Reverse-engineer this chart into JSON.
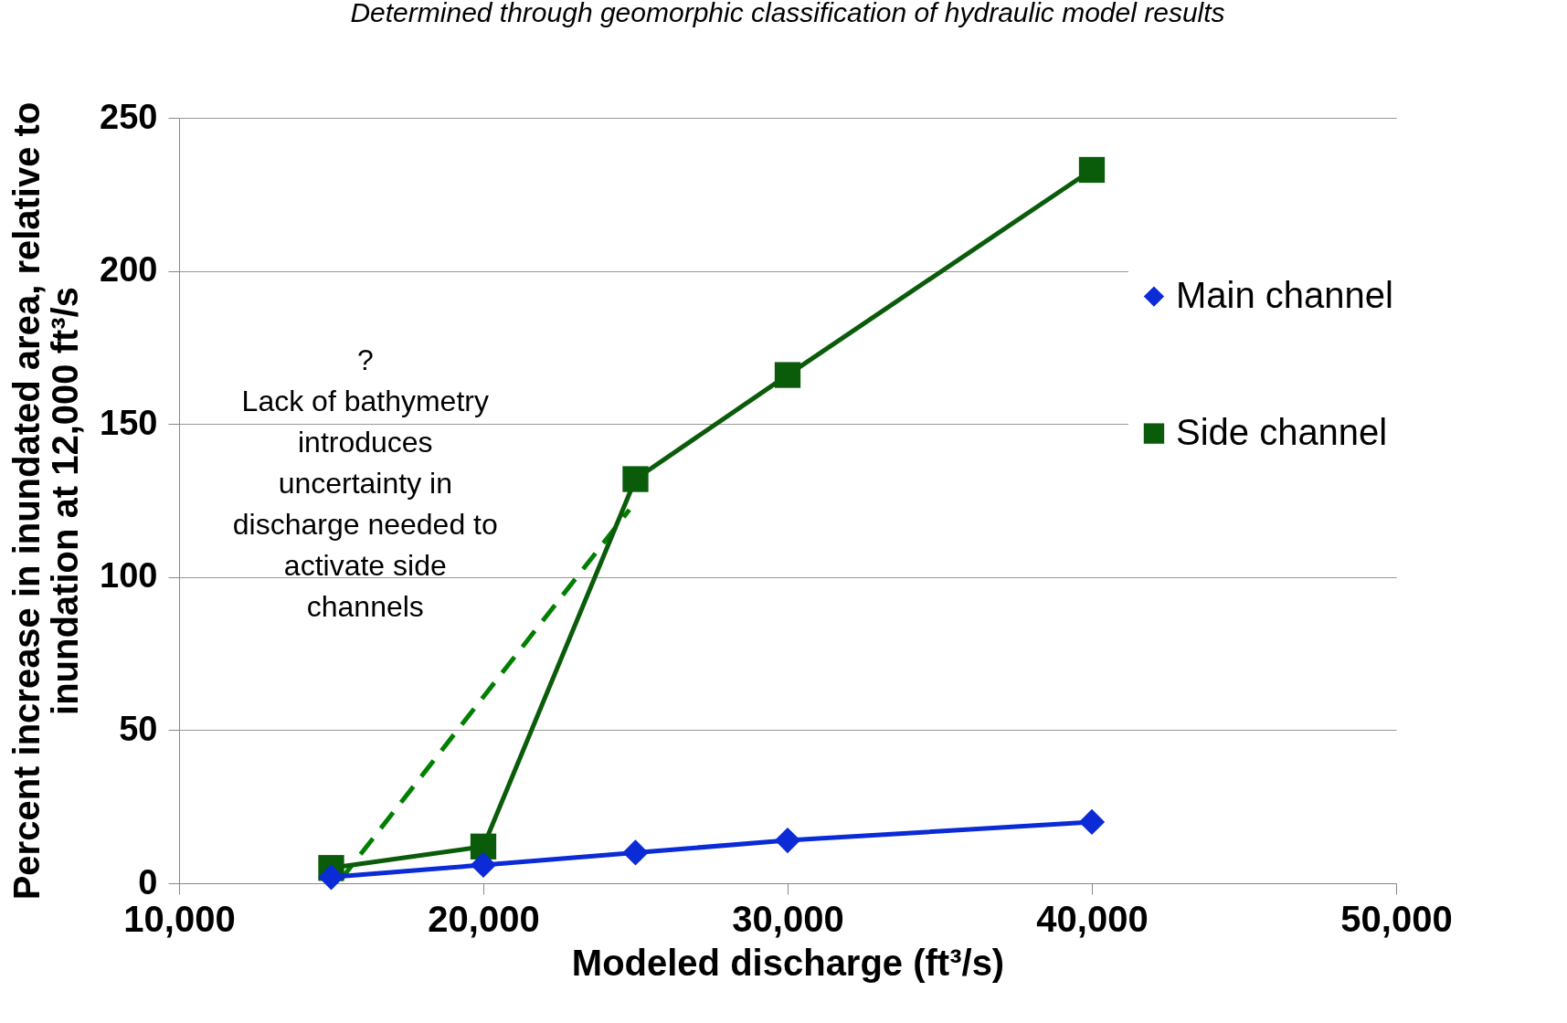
{
  "chart_data": {
    "type": "line",
    "subtitle": "Determined through geomorphic classification of hydraulic model results",
    "xlabel": "Modeled discharge (ft³/s)",
    "ylabel": "Percent increase in inundated area, relative to inundation at 12,000 ft³/s",
    "x": [
      15000,
      20000,
      25000,
      30000,
      40000
    ],
    "series": [
      {
        "name": "Main channel",
        "color": "#0a2bd6",
        "marker": "diamond",
        "values": [
          2,
          6,
          10,
          14,
          20
        ]
      },
      {
        "name": "Side channel",
        "color": "#0a5c0a",
        "marker": "square",
        "values": [
          5,
          12,
          132,
          166,
          233
        ]
      },
      {
        "type": "line",
        "color": "#007f00",
        "line_style": "dashed",
        "marker": "none",
        "x": [
          15300,
          24800
        ],
        "values": [
          1,
          122
        ]
      }
    ],
    "xlim": [
      10000,
      50000
    ],
    "xticks": [
      {
        "value": 10000,
        "label": "10,000"
      },
      {
        "value": 20000,
        "label": "20,000"
      },
      {
        "value": 30000,
        "label": "30,000"
      },
      {
        "value": 40000,
        "label": "40,000"
      },
      {
        "value": 50000,
        "label": "50,000"
      }
    ],
    "ylim": [
      0,
      250
    ],
    "yticks": [
      0,
      50,
      100,
      150,
      200,
      250
    ],
    "grid": "y",
    "legend": "right",
    "annotations": [
      "?\nLack of bathymetry\nintroduces\nuncertainty in\ndischarge needed to\nactivate side\nchannels"
    ]
  }
}
